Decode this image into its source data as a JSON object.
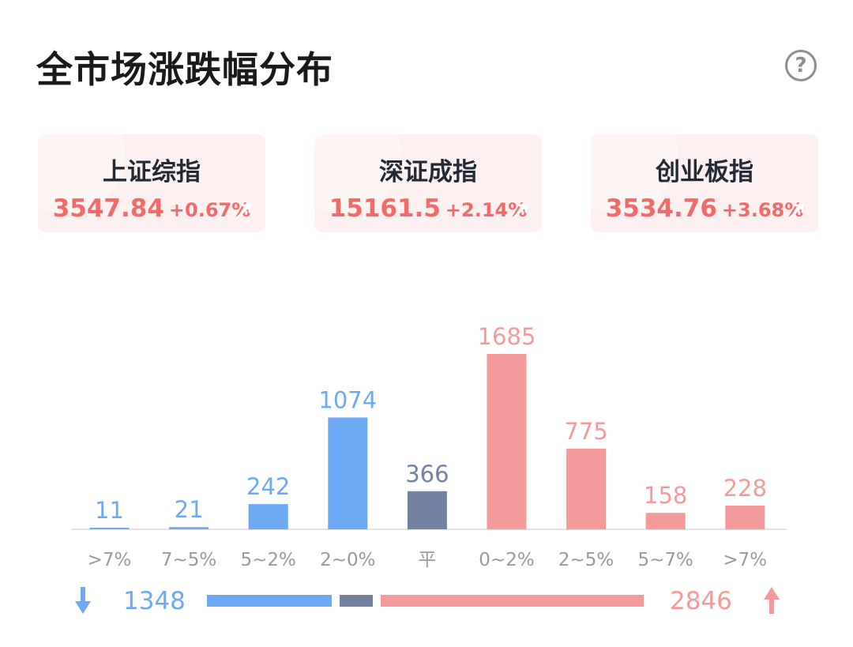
{
  "title": "全市场涨跌幅分布",
  "help_icon": "question-circle-icon",
  "indices": [
    {
      "name": "上证综指",
      "value": "3547.84",
      "change": "+0.67%"
    },
    {
      "name": "深证成指",
      "value": "15161.5",
      "change": "+2.14%"
    },
    {
      "name": "创业板指",
      "value": "3534.76",
      "change": "+3.68%"
    }
  ],
  "colors": {
    "down": "#6ea9f5",
    "flat": "#7482a1",
    "up": "#f59a9a",
    "up_text": "#f26b6b",
    "axis_label": "#9a9a9a"
  },
  "chart_data": {
    "type": "bar",
    "categories": [
      ">7%",
      "7~5%",
      "5~2%",
      "2~0%",
      "平",
      "0~2%",
      "2~5%",
      "5~7%",
      ">7%"
    ],
    "values": [
      11,
      21,
      242,
      1074,
      366,
      1685,
      775,
      158,
      228
    ],
    "groups": [
      "down",
      "down",
      "down",
      "down",
      "flat",
      "up",
      "up",
      "up",
      "up"
    ],
    "title": "",
    "xlabel": "",
    "ylabel": "",
    "ylim": [
      0,
      1685
    ],
    "grid": false
  },
  "summary": {
    "down_count": "1348",
    "up_count": "2846",
    "flat_count": 366,
    "down_icon": "arrow-down-icon",
    "up_icon": "arrow-up-icon"
  }
}
